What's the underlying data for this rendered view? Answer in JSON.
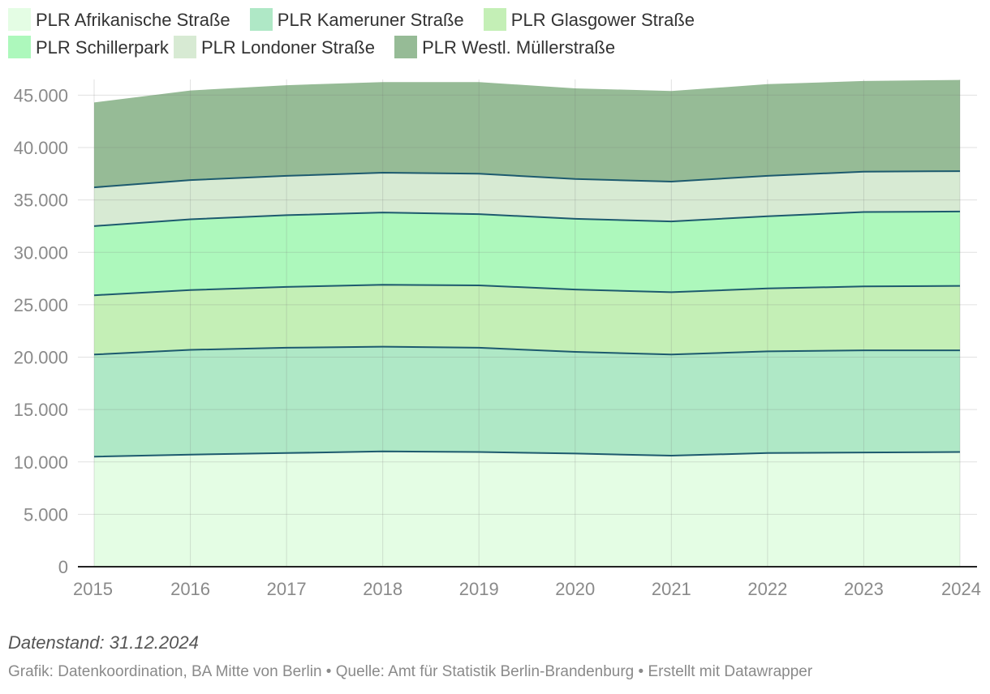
{
  "chart_data": {
    "type": "area",
    "stacked": true,
    "x": [
      2015,
      2016,
      2017,
      2018,
      2019,
      2020,
      2021,
      2022,
      2023,
      2024
    ],
    "x_tick_labels": [
      "2015",
      "2016",
      "2017",
      "2018",
      "2019",
      "2020",
      "2021",
      "2022",
      "2023",
      "2024"
    ],
    "ylim": [
      0,
      46500
    ],
    "y_ticks": [
      0,
      5000,
      10000,
      15000,
      20000,
      25000,
      30000,
      35000,
      40000,
      45000
    ],
    "y_tick_labels": [
      "0",
      "5.000",
      "10.000",
      "15.000",
      "20.000",
      "25.000",
      "30.000",
      "35.000",
      "40.000",
      "45.000"
    ],
    "grid": true,
    "legend_position": "top",
    "series": [
      {
        "name": "PLR Afrikanische Straße",
        "color": "#e4fde4",
        "values": [
          10500,
          10700,
          10850,
          11000,
          10950,
          10800,
          10600,
          10850,
          10900,
          10950
        ]
      },
      {
        "name": "PLR Kameruner Straße",
        "color": "#afe8c6",
        "values": [
          9750,
          10000,
          10050,
          10000,
          9950,
          9700,
          9650,
          9700,
          9750,
          9700
        ]
      },
      {
        "name": "PLR Glasgower Straße",
        "color": "#c4efb6",
        "values": [
          5650,
          5700,
          5800,
          5900,
          5950,
          5950,
          5950,
          6000,
          6100,
          6150
        ]
      },
      {
        "name": "PLR Schillerpark",
        "color": "#adf8bc",
        "values": [
          6600,
          6750,
          6850,
          6900,
          6800,
          6750,
          6750,
          6900,
          7100,
          7100
        ]
      },
      {
        "name": "PLR Londoner Straße",
        "color": "#d7ead3",
        "values": [
          3700,
          3750,
          3750,
          3800,
          3850,
          3800,
          3800,
          3850,
          3850,
          3850
        ]
      },
      {
        "name": "PLR Westl. Müllerstraße",
        "color": "#96bb96",
        "values": [
          8100,
          8550,
          8650,
          8650,
          8750,
          8650,
          8650,
          8750,
          8650,
          8700
        ]
      }
    ]
  },
  "footer": {
    "note": "Datenstand: 31.12.2024",
    "source": "Grafik: Datenkoordination, BA Mitte von Berlin • Quelle: Amt für Statistik Berlin-Brandenburg • Erstellt mit Datawrapper"
  },
  "colors": {
    "line": "#1d5a6e",
    "grid": "#e5e5e5",
    "axis": "#222222"
  }
}
